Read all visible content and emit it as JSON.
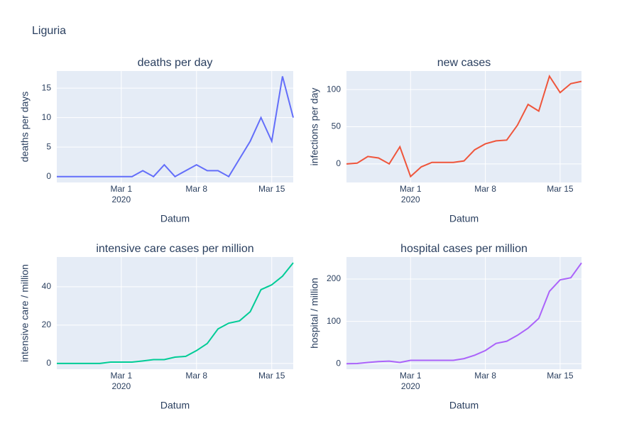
{
  "title": "Liguria",
  "chart_data": [
    {
      "type": "line",
      "title": "deaths per day",
      "xlabel": "Datum",
      "ylabel": "deaths per days",
      "x": [
        "2020-02-24",
        "2020-02-25",
        "2020-02-26",
        "2020-02-27",
        "2020-02-28",
        "2020-02-29",
        "2020-03-01",
        "2020-03-02",
        "2020-03-03",
        "2020-03-04",
        "2020-03-05",
        "2020-03-06",
        "2020-03-07",
        "2020-03-08",
        "2020-03-09",
        "2020-03-10",
        "2020-03-11",
        "2020-03-12",
        "2020-03-13",
        "2020-03-14",
        "2020-03-15",
        "2020-03-16",
        "2020-03-17"
      ],
      "series": [
        {
          "color": "#636efa",
          "values": [
            0,
            0,
            0,
            0,
            0,
            0,
            0,
            0,
            1,
            0,
            2,
            0,
            1,
            2,
            1,
            1,
            0,
            3,
            6,
            10,
            6,
            17,
            10
          ]
        }
      ],
      "xlim": [
        "2020-02-24",
        "2020-03-17"
      ],
      "xticks": [
        {
          "value": "2020-03-01",
          "label": "Mar 1"
        },
        {
          "value": "2020-03-08",
          "label": "Mar 8"
        },
        {
          "value": "2020-03-15",
          "label": "Mar 15"
        }
      ],
      "xtick_year": "2020",
      "ylim": [
        -1,
        17.9
      ],
      "yticks": [
        0,
        5,
        10,
        15
      ],
      "grid": true
    },
    {
      "type": "line",
      "title": "new cases",
      "xlabel": "Datum",
      "ylabel": "infections per day",
      "x": [
        "2020-02-24",
        "2020-02-25",
        "2020-02-26",
        "2020-02-27",
        "2020-02-28",
        "2020-02-29",
        "2020-03-01",
        "2020-03-02",
        "2020-03-03",
        "2020-03-04",
        "2020-03-05",
        "2020-03-06",
        "2020-03-07",
        "2020-03-08",
        "2020-03-09",
        "2020-03-10",
        "2020-03-11",
        "2020-03-12",
        "2020-03-13",
        "2020-03-14",
        "2020-03-15",
        "2020-03-16",
        "2020-03-17"
      ],
      "series": [
        {
          "color": "#EF553B",
          "values": [
            0,
            1,
            10,
            8,
            0,
            23,
            -17,
            -4,
            2,
            2,
            2,
            4,
            19,
            27,
            31,
            32,
            52,
            80,
            71,
            118,
            96,
            108,
            111
          ]
        }
      ],
      "xlim": [
        "2020-02-24",
        "2020-03-17"
      ],
      "xticks": [
        {
          "value": "2020-03-01",
          "label": "Mar 1"
        },
        {
          "value": "2020-03-08",
          "label": "Mar 8"
        },
        {
          "value": "2020-03-15",
          "label": "Mar 15"
        }
      ],
      "xtick_year": "2020",
      "ylim": [
        -25,
        125
      ],
      "yticks": [
        0,
        50,
        100
      ],
      "grid": true
    },
    {
      "type": "line",
      "title": "intensive care cases per million",
      "xlabel": "Datum",
      "ylabel": "intensive care / million",
      "x": [
        "2020-02-24",
        "2020-02-25",
        "2020-02-26",
        "2020-02-27",
        "2020-02-28",
        "2020-02-29",
        "2020-03-01",
        "2020-03-02",
        "2020-03-03",
        "2020-03-04",
        "2020-03-05",
        "2020-03-06",
        "2020-03-07",
        "2020-03-08",
        "2020-03-09",
        "2020-03-10",
        "2020-03-11",
        "2020-03-12",
        "2020-03-13",
        "2020-03-14",
        "2020-03-15",
        "2020-03-16",
        "2020-03-17"
      ],
      "series": [
        {
          "color": "#00cc96",
          "values": [
            0,
            0,
            0,
            0,
            0,
            0.7,
            0.7,
            0.7,
            1.3,
            2,
            2,
            3.3,
            3.7,
            6.7,
            10.4,
            18,
            21,
            22.2,
            27,
            38.5,
            41,
            45.5,
            52.5
          ]
        }
      ],
      "xlim": [
        "2020-02-24",
        "2020-03-17"
      ],
      "xticks": [
        {
          "value": "2020-03-01",
          "label": "Mar 1"
        },
        {
          "value": "2020-03-08",
          "label": "Mar 8"
        },
        {
          "value": "2020-03-15",
          "label": "Mar 15"
        }
      ],
      "xtick_year": "2020",
      "ylim": [
        -3,
        55.5
      ],
      "yticks": [
        0,
        20,
        40
      ],
      "grid": true
    },
    {
      "type": "line",
      "title": "hospital cases per million",
      "xlabel": "Datum",
      "ylabel": "hospital / million",
      "x": [
        "2020-02-24",
        "2020-02-25",
        "2020-02-26",
        "2020-02-27",
        "2020-02-28",
        "2020-02-29",
        "2020-03-01",
        "2020-03-02",
        "2020-03-03",
        "2020-03-04",
        "2020-03-05",
        "2020-03-06",
        "2020-03-07",
        "2020-03-08",
        "2020-03-09",
        "2020-03-10",
        "2020-03-11",
        "2020-03-12",
        "2020-03-13",
        "2020-03-14",
        "2020-03-15",
        "2020-03-16",
        "2020-03-17"
      ],
      "series": [
        {
          "color": "#ab63fa",
          "values": [
            0,
            0.5,
            3,
            5,
            6,
            3,
            8,
            8,
            8,
            8,
            8,
            12,
            20,
            31,
            48,
            53,
            67,
            84,
            107,
            171,
            198,
            203,
            238
          ]
        }
      ],
      "xlim": [
        "2020-02-24",
        "2020-03-17"
      ],
      "xticks": [
        {
          "value": "2020-03-01",
          "label": "Mar 1"
        },
        {
          "value": "2020-03-08",
          "label": "Mar 8"
        },
        {
          "value": "2020-03-15",
          "label": "Mar 15"
        }
      ],
      "xtick_year": "2020",
      "ylim": [
        -13,
        252
      ],
      "yticks": [
        0,
        100,
        200
      ],
      "grid": true
    }
  ]
}
